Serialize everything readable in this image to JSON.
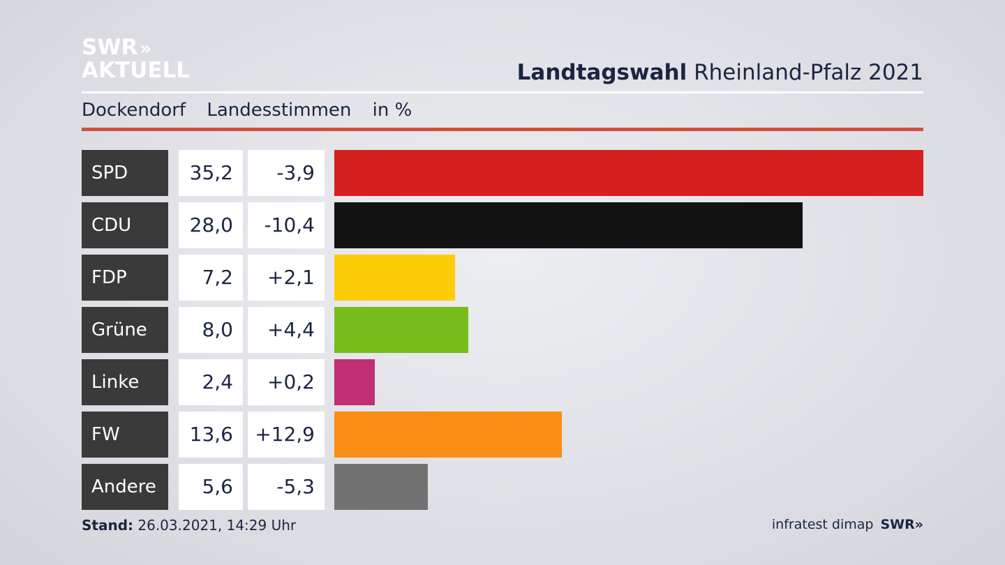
{
  "brand": {
    "logo_line1": "SWR",
    "logo_chevrons": "»",
    "logo_line2": "AKTUELL"
  },
  "header": {
    "title_bold": "Landtagswahl",
    "title_rest": "Rheinland-Pfalz 2021"
  },
  "subheader": {
    "location": "Dockendorf",
    "vote_type": "Landesstimmen",
    "unit": "in %"
  },
  "colors": {
    "SPD": "#d61f1f",
    "CDU": "#121212",
    "FDP": "#ffcc0a",
    "Grüne": "#78bc1b",
    "Linke": "#be2f73",
    "FW": "#fb8c16",
    "Andere": "#727272"
  },
  "chart_data": {
    "type": "bar",
    "orientation": "horizontal",
    "categories": [
      "SPD",
      "CDU",
      "FDP",
      "Grüne",
      "Linke",
      "FW",
      "Andere"
    ],
    "values": [
      35.2,
      28.0,
      7.2,
      8.0,
      2.4,
      13.6,
      5.6
    ],
    "value_labels": [
      "35,2",
      "28,0",
      "7,2",
      "8,0",
      "2,4",
      "13,6",
      "5,6"
    ],
    "changes": [
      -3.9,
      -10.4,
      2.1,
      4.4,
      0.2,
      12.9,
      -5.3
    ],
    "change_labels": [
      "-3,9",
      "-10,4",
      "+2,1",
      "+4,4",
      "+0,2",
      "+12,9",
      "-5,3"
    ],
    "xlim": [
      0,
      35.2
    ]
  },
  "footer": {
    "stand_label": "Stand:",
    "stand_value": "26.03.2021, 14:29 Uhr",
    "source": "infratest dimap",
    "brand": "SWR»"
  }
}
